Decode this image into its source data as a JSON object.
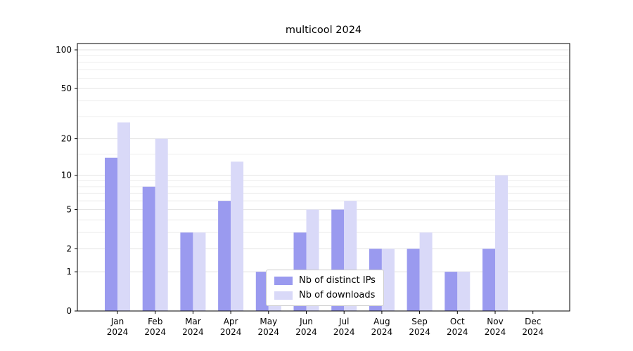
{
  "chart_data": {
    "type": "bar",
    "title": "multicool 2024",
    "categories": [
      {
        "month": "Jan",
        "year": "2024"
      },
      {
        "month": "Feb",
        "year": "2024"
      },
      {
        "month": "Mar",
        "year": "2024"
      },
      {
        "month": "Apr",
        "year": "2024"
      },
      {
        "month": "May",
        "year": "2024"
      },
      {
        "month": "Jun",
        "year": "2024"
      },
      {
        "month": "Jul",
        "year": "2024"
      },
      {
        "month": "Aug",
        "year": "2024"
      },
      {
        "month": "Sep",
        "year": "2024"
      },
      {
        "month": "Oct",
        "year": "2024"
      },
      {
        "month": "Nov",
        "year": "2024"
      },
      {
        "month": "Dec",
        "year": "2024"
      }
    ],
    "series": [
      {
        "name": "Nb of distinct IPs",
        "color": "#9a9aef",
        "values": [
          14,
          8,
          3,
          6,
          1,
          3,
          5,
          2,
          2,
          1,
          2,
          0
        ]
      },
      {
        "name": "Nb of downloads",
        "color": "#d9d9f8",
        "values": [
          27,
          20,
          3,
          13,
          1,
          5,
          6,
          2,
          3,
          1,
          10,
          0
        ]
      }
    ],
    "yticks": [
      0,
      1,
      2,
      5,
      10,
      20,
      50,
      100
    ],
    "minor_gridlines": [
      3,
      4,
      6,
      7,
      8,
      9,
      15,
      30,
      40,
      60,
      70,
      80,
      90
    ],
    "ylim": [
      0,
      112
    ],
    "scale": "log1p",
    "grid": true,
    "legend_position": "lower center"
  }
}
